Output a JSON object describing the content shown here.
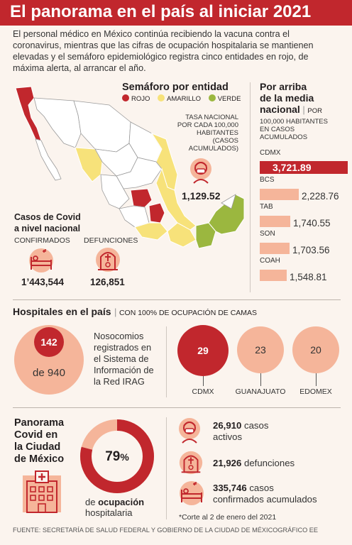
{
  "title": "El panorama en el país al iniciar 2021",
  "intro": "El personal médico en México continúa recibiendo la vacuna contra el coronavirus, mientras que las cifras de ocupación hospitalaria se mantienen elevadas y el semáforo epidemiológico registra cinco entidades en rojo, de máxima alerta, al arrancar el año.",
  "colors": {
    "red": "#c1272d",
    "yellow": "#f7e27a",
    "green": "#9bb73f",
    "salmon": "#f5b59a",
    "map_grey": "#ffffff"
  },
  "semaforo": {
    "heading": "Semáforo por entidad",
    "legend": [
      "ROJO",
      "AMARILLO",
      "VERDE"
    ]
  },
  "tasa": {
    "label_lines": [
      "TASA NACIONAL",
      "POR CADA 100,000",
      "HABITANTES",
      "(CASOS",
      "ACUMULADOS)"
    ],
    "value": "1,129.52",
    "icon": "person-mask-icon"
  },
  "casos": {
    "heading_lines": [
      "Casos de Covid",
      "a nivel nacional"
    ],
    "confirmados_label": "CONFIRMADOS",
    "confirmados_value": "1’443,544",
    "defunciones_label": "DEFUNCIONES",
    "defunciones_value": "126,851"
  },
  "media": {
    "heading_lines": [
      "Por arriba",
      "de la media",
      "nacional"
    ],
    "sub_first": "POR",
    "sub_lines": [
      "100,000 HABITANTES",
      "EN CASOS",
      "ACUMULADOS"
    ],
    "items": [
      {
        "label": "CDMX",
        "value": "3,721.89",
        "fraction": 1.0,
        "highlight": true
      },
      {
        "label": "BCS",
        "value": "2,228.76",
        "fraction": 0.6,
        "highlight": false
      },
      {
        "label": "TAB",
        "value": "1,740.55",
        "fraction": 0.468,
        "highlight": false
      },
      {
        "label": "SON",
        "value": "1,703.56",
        "fraction": 0.458,
        "highlight": false
      },
      {
        "label": "COAH",
        "value": "1,548.81",
        "fraction": 0.416,
        "highlight": false
      }
    ]
  },
  "hospitales": {
    "heading": "Hospitales en el país",
    "sub": "CON 100% DE OCUPACIÓN DE CAMAS",
    "count": "142",
    "total": "de 940",
    "desc_lines": [
      "Nosocomios",
      "registrados en",
      "el Sistema de",
      "Información de",
      "la Red IRAG"
    ],
    "states": [
      {
        "name": "CDMX",
        "value": "29"
      },
      {
        "name": "GUANAJUATO",
        "value": "23"
      },
      {
        "name": "EDOMEX",
        "value": "20"
      }
    ]
  },
  "cdmx": {
    "heading_lines": [
      "Panorama",
      "Covid en",
      "la Ciudad",
      "de México"
    ],
    "ocupacion_value": "79",
    "ocupacion_unit": "%",
    "ocupacion_fraction": 0.79,
    "ocupacion_pre": "de",
    "ocupacion_bold": "ocupación",
    "ocupacion_post": "hospitalaria",
    "stats": [
      {
        "value": "26,910",
        "text1": " casos",
        "text2": "activos",
        "icon": "person-mask-icon"
      },
      {
        "value": "21,926",
        "text1": " defunciones",
        "text2": "",
        "icon": "tombstone-icon"
      },
      {
        "value": "335,746",
        "text1": " casos",
        "text2": "confirmados acumulados",
        "icon": "hospital-bed-icon"
      }
    ],
    "nota": "*Corte al 2 de enero del 2021"
  },
  "fuente": "FUENTE: SECRETARÍA DE SALUD FEDERAL Y GOBIERNO DE LA CIUDAD DE MÉXICOGRÁFICO EE"
}
